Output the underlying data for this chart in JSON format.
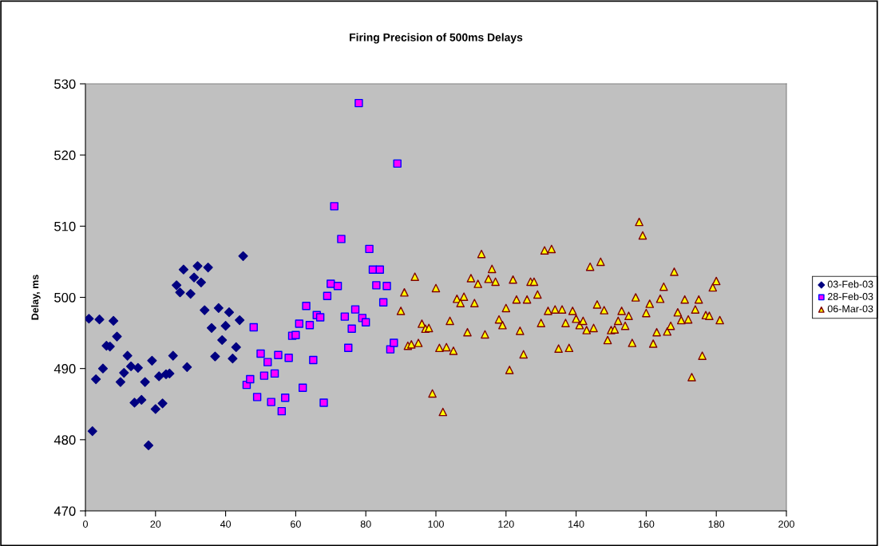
{
  "chart_data": {
    "type": "scatter",
    "title": "Firing Precision of 500ms Delays",
    "ylabel": "Delay, ms",
    "xlim": [
      0,
      200
    ],
    "xticks": [
      0,
      20,
      40,
      60,
      80,
      100,
      120,
      140,
      160,
      180,
      200
    ],
    "ylim": [
      470,
      530
    ],
    "yticks": [
      470,
      480,
      490,
      500,
      510,
      520,
      530
    ],
    "grid": false,
    "legend": "right",
    "series": [
      {
        "name": "03-Feb-03",
        "color": "#000080",
        "marker": "diamond",
        "x": [
          1,
          2,
          3,
          4,
          5,
          6,
          7,
          8,
          9,
          10,
          11,
          12,
          13,
          14,
          15,
          16,
          17,
          18,
          19,
          20,
          21,
          22,
          23,
          24,
          25,
          26,
          27,
          28,
          29,
          30,
          31,
          32,
          33,
          34,
          35,
          36,
          37,
          38,
          39,
          40,
          41,
          42,
          43,
          44,
          45
        ],
        "values": [
          497.0,
          481.2,
          488.5,
          496.9,
          490.0,
          493.2,
          493.1,
          496.7,
          494.5,
          488.1,
          489.4,
          491.8,
          490.3,
          485.2,
          490.1,
          485.6,
          488.1,
          479.2,
          491.1,
          484.3,
          488.9,
          485.1,
          489.2,
          489.3,
          491.8,
          501.7,
          500.7,
          503.9,
          490.2,
          500.5,
          502.8,
          504.4,
          502.1,
          498.2,
          504.2,
          495.7,
          491.7,
          498.5,
          494.0,
          496.0,
          497.9,
          491.4,
          493.0,
          496.8,
          505.8
        ]
      },
      {
        "name": "28-Feb-03",
        "color": "#ff00ff",
        "marker": "square",
        "x": [
          46,
          47,
          48,
          49,
          50,
          51,
          52,
          53,
          54,
          55,
          56,
          57,
          58,
          59,
          60,
          61,
          62,
          63,
          64,
          65,
          66,
          67,
          68,
          69,
          70,
          71,
          72,
          73,
          74,
          75,
          76,
          77,
          78,
          79,
          80,
          81,
          82,
          83,
          84,
          85,
          86,
          87,
          88,
          89
        ],
        "values": [
          487.7,
          488.5,
          495.8,
          486.0,
          492.1,
          489.0,
          490.9,
          485.3,
          489.3,
          491.9,
          484.0,
          485.9,
          491.5,
          494.6,
          494.7,
          496.3,
          487.3,
          498.8,
          496.1,
          491.2,
          497.5,
          497.2,
          485.2,
          500.2,
          501.9,
          512.8,
          501.6,
          508.2,
          497.3,
          492.9,
          495.6,
          498.3,
          527.3,
          497.1,
          496.5,
          506.8,
          503.9,
          501.7,
          503.9,
          499.3,
          501.6,
          492.7,
          493.6,
          518.8
        ]
      },
      {
        "name": "06-Mar-03",
        "color": "#ffff00",
        "marker": "triangle",
        "x": [
          90,
          91,
          92,
          93,
          94,
          95,
          96,
          97,
          98,
          99,
          100,
          101,
          102,
          103,
          104,
          105,
          106,
          107,
          108,
          109,
          110,
          111,
          112,
          113,
          114,
          115,
          116,
          117,
          118,
          119,
          120,
          121,
          122,
          123,
          124,
          125,
          126,
          127,
          128,
          129,
          130,
          131,
          132,
          133,
          134,
          135,
          136,
          137,
          138,
          139,
          140,
          141,
          142,
          143,
          144,
          145,
          146,
          147,
          148,
          149,
          150,
          151,
          152,
          153,
          154,
          155,
          156,
          157,
          158,
          159,
          160,
          161,
          162,
          163,
          164,
          165,
          166,
          167,
          168,
          169,
          170,
          171,
          172,
          173,
          174,
          175,
          176,
          177,
          178,
          179,
          180,
          181
        ],
        "values": [
          498.1,
          500.7,
          493.2,
          493.4,
          502.9,
          493.6,
          496.3,
          495.6,
          495.7,
          486.5,
          501.3,
          492.9,
          483.9,
          493.0,
          496.7,
          492.5,
          499.8,
          499.2,
          500.1,
          495.1,
          502.7,
          499.2,
          501.9,
          506.1,
          494.8,
          502.6,
          504.0,
          502.2,
          496.9,
          496.1,
          498.5,
          489.8,
          502.5,
          499.7,
          495.3,
          492.0,
          499.7,
          502.2,
          502.2,
          500.4,
          496.4,
          506.6,
          498.1,
          506.8,
          498.3,
          492.8,
          498.3,
          496.4,
          492.9,
          498.1,
          497.0,
          496.1,
          496.7,
          495.4,
          504.3,
          495.7,
          499.0,
          505.0,
          498.2,
          494.0,
          495.4,
          495.5,
          496.7,
          498.1,
          496.0,
          497.4,
          493.6,
          500.0,
          510.6,
          508.7,
          497.8,
          499.1,
          493.5,
          495.1,
          499.8,
          501.5,
          495.2,
          496.0,
          503.6,
          497.9,
          496.8,
          499.7,
          496.9,
          488.8,
          498.3,
          499.7,
          491.8,
          497.5,
          497.4,
          501.4,
          502.3,
          496.8
        ]
      }
    ]
  }
}
